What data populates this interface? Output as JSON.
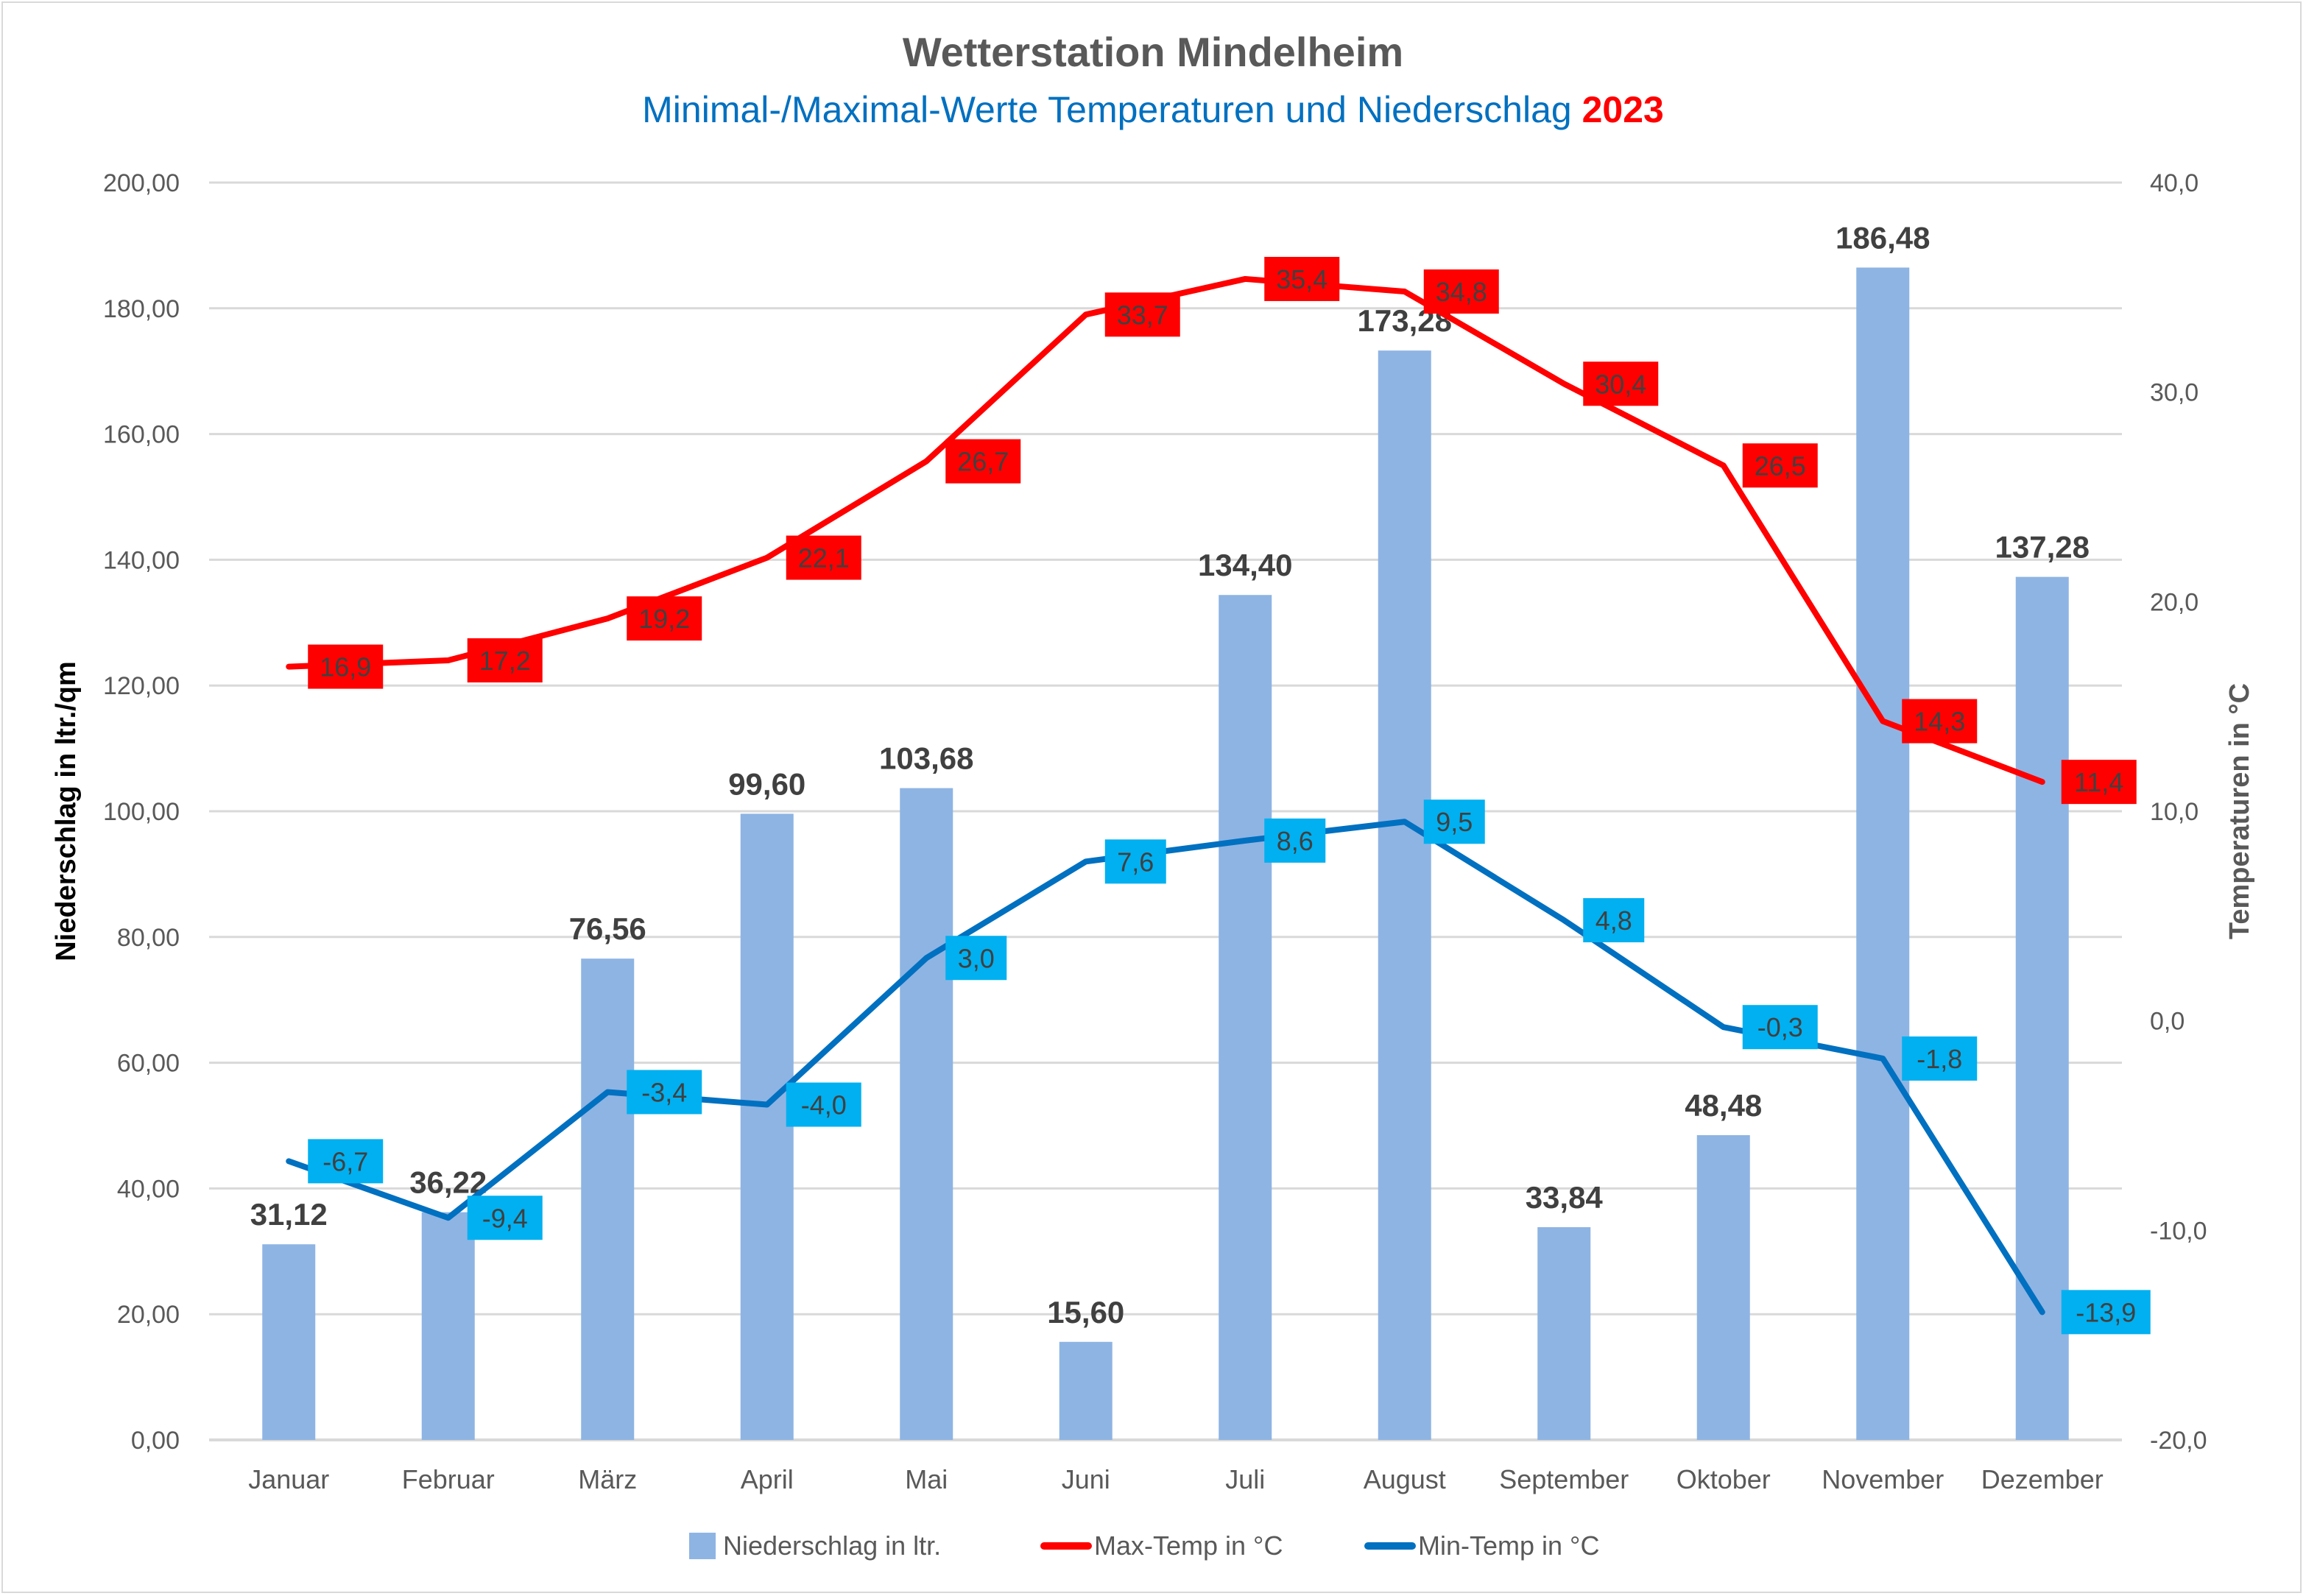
{
  "chart_data": {
    "type": "bar+line",
    "title": "Wetterstation Mindelheim",
    "subtitle": "Minimal-/Maximal-Werte Temperaturen und Niederschlag",
    "subtitle_year": "2023",
    "categories": [
      "Januar",
      "Februar",
      "März",
      "April",
      "Mai",
      "Juni",
      "Juli",
      "August",
      "September",
      "Oktober",
      "November",
      "Dezember"
    ],
    "ylabel_left": "Niederschlag in ltr./qm",
    "ylabel_right": "Temperaturen in °C",
    "ylim_left": [
      0,
      200
    ],
    "ylim_right": [
      -20,
      40
    ],
    "yticks_left": [
      "0,00",
      "20,00",
      "40,00",
      "60,00",
      "80,00",
      "100,00",
      "120,00",
      "140,00",
      "160,00",
      "180,00",
      "200,00"
    ],
    "yticks_right": [
      "-20,0",
      "-10,0",
      "0,0",
      "10,0",
      "20,0",
      "30,0",
      "40,0"
    ],
    "grid": true,
    "legend_position": "bottom",
    "series": [
      {
        "name": "Niederschlag in ltr.",
        "type": "bar",
        "axis": "left",
        "color": "#8eb4e3",
        "values": [
          31.12,
          36.22,
          76.56,
          99.6,
          103.68,
          15.6,
          134.4,
          173.28,
          33.84,
          48.48,
          186.48,
          137.28
        ],
        "labels": [
          "31,12",
          "36,22",
          "76,56",
          "99,60",
          "103,68",
          "15,60",
          "134,40",
          "173,28",
          "33,84",
          "48,48",
          "186,48",
          "137,28"
        ]
      },
      {
        "name": "Max-Temp in °C",
        "type": "line",
        "axis": "right",
        "color": "#ff0000",
        "values": [
          16.9,
          17.2,
          19.2,
          22.1,
          26.7,
          33.7,
          35.4,
          34.8,
          30.4,
          26.5,
          14.3,
          11.4
        ],
        "labels": [
          "16,9",
          "17,2",
          "19,2",
          "22,1",
          "26,7",
          "33,7",
          "35,4",
          "34,8",
          "30,4",
          "26,5",
          "14,3",
          "11,4"
        ]
      },
      {
        "name": "Min-Temp in °C",
        "type": "line",
        "axis": "right",
        "color": "#0070c0",
        "label_bg": "#00b0f0",
        "values": [
          -6.7,
          -9.4,
          -3.4,
          -4.0,
          3.0,
          7.6,
          8.6,
          9.5,
          4.8,
          -0.3,
          -1.8,
          -13.9
        ],
        "labels": [
          "-6,7",
          "-9,4",
          "-3,4",
          "-4,0",
          "3,0",
          "7,6",
          "8,6",
          "9,5",
          "4,8",
          "-0,3",
          "-1,8",
          "-13,9"
        ]
      }
    ]
  }
}
